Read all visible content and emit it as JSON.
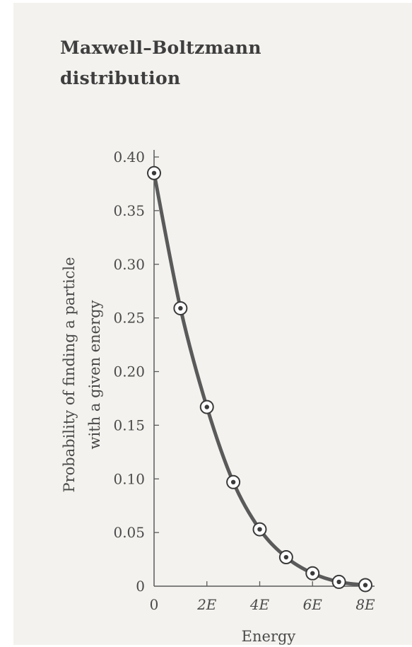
{
  "chart_data": {
    "type": "line",
    "title_lines": [
      "Maxwell–Boltzmann",
      "distribution"
    ],
    "xlabel": "Energy",
    "ylabel_lines": [
      "Probability of finding a particle",
      "with a given energy"
    ],
    "xlim": [
      0,
      8
    ],
    "ylim": [
      0,
      0.4
    ],
    "x_tick_values": [
      0,
      2,
      4,
      6,
      8
    ],
    "x_tick_labels": [
      "0",
      "2E",
      "4E",
      "6E",
      "8E"
    ],
    "y_tick_values": [
      0,
      0.05,
      0.1,
      0.15,
      0.2,
      0.25,
      0.3,
      0.35,
      0.4
    ],
    "y_tick_labels": [
      "0",
      "0.05",
      "0.10",
      "0.15",
      "0.20",
      "0.25",
      "0.30",
      "0.35",
      "0.40"
    ],
    "grid": false,
    "series": [
      {
        "x": [
          0,
          1,
          2,
          3,
          4,
          5,
          6,
          7,
          8
        ],
        "y": [
          0.385,
          0.259,
          0.167,
          0.097,
          0.053,
          0.027,
          0.012,
          0.004,
          0.001
        ]
      }
    ],
    "colors": {
      "curve": "#5a5a5a",
      "axis": "#5a5a5a",
      "marker_fill": "#ffffff",
      "marker_dot": "#3a3a3a"
    }
  }
}
